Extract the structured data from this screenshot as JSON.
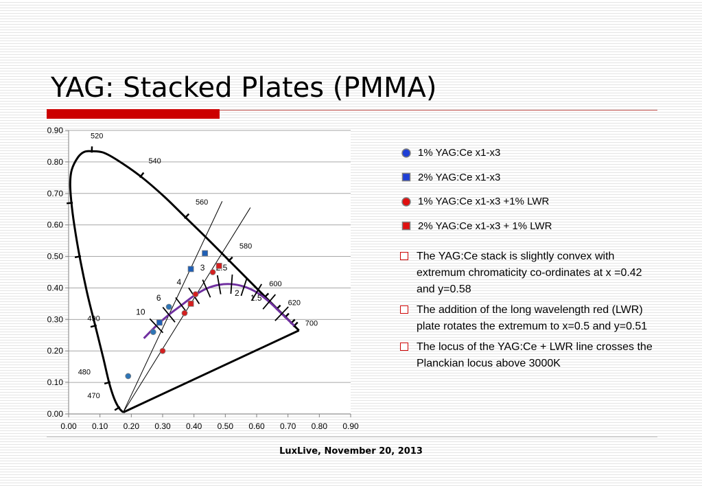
{
  "slide": {
    "title": "YAG: Stacked Plates (PMMA)",
    "footer": "LuxLive, November 20, 2013"
  },
  "colors": {
    "accent_red": "#cc0000",
    "title_rule": "#c0504d",
    "series_1": "#2e75b6",
    "series_2": "#1f5fb5",
    "series_3": "#d42020",
    "series_4": "#d42020",
    "yag_curve": "#7030a0",
    "marker_outline": "#7f7f7f"
  },
  "chart_data": {
    "type": "scatter",
    "xlim": [
      0,
      0.9
    ],
    "ylim": [
      0,
      0.9
    ],
    "x_ticks": [
      "0.00",
      "0.10",
      "0.20",
      "0.30",
      "0.40",
      "0.50",
      "0.60",
      "0.70",
      "0.80",
      "0.90"
    ],
    "y_ticks": [
      "0.00",
      "0.10",
      "0.20",
      "0.30",
      "0.40",
      "0.50",
      "0.60",
      "0.70",
      "0.80",
      "0.90"
    ],
    "grid": "horizontal",
    "legend_position": "right",
    "series": [
      {
        "name": "1% YAG:Ce x1-x3",
        "marker": "circle",
        "color_key": "series_1",
        "points": [
          [
            0.19,
            0.12
          ],
          [
            0.27,
            0.26
          ],
          [
            0.32,
            0.34
          ]
        ]
      },
      {
        "name": "2% YAG:Ce x1-x3",
        "marker": "square",
        "color_key": "series_2",
        "points": [
          [
            0.29,
            0.29
          ],
          [
            0.39,
            0.46
          ],
          [
            0.435,
            0.51
          ]
        ]
      },
      {
        "name": "1% YAG:Ce x1-x3 +1% LWR",
        "marker": "circle",
        "color_key": "series_3",
        "points": [
          [
            0.3,
            0.2
          ],
          [
            0.37,
            0.32
          ],
          [
            0.405,
            0.38
          ],
          [
            0.46,
            0.45
          ]
        ]
      },
      {
        "name": "2% YAG:Ce x1-x3 + 1% LWR",
        "marker": "square",
        "color_key": "series_4",
        "points": [
          [
            0.39,
            0.35
          ],
          [
            0.48,
            0.47
          ]
        ]
      }
    ],
    "spectral_locus": {
      "points": [
        [
          0.174,
          0.005
        ],
        [
          0.16,
          0.02
        ],
        [
          0.145,
          0.05
        ],
        [
          0.129,
          0.1
        ],
        [
          0.11,
          0.18
        ],
        [
          0.085,
          0.28
        ],
        [
          0.06,
          0.38
        ],
        [
          0.035,
          0.5
        ],
        [
          0.018,
          0.6
        ],
        [
          0.009,
          0.67
        ],
        [
          0.005,
          0.73
        ],
        [
          0.01,
          0.775
        ],
        [
          0.03,
          0.815
        ],
        [
          0.05,
          0.832
        ],
        [
          0.074,
          0.834
        ],
        [
          0.11,
          0.83
        ],
        [
          0.155,
          0.806
        ],
        [
          0.23,
          0.754
        ],
        [
          0.305,
          0.69
        ],
        [
          0.373,
          0.624
        ],
        [
          0.444,
          0.555
        ],
        [
          0.512,
          0.487
        ],
        [
          0.575,
          0.424
        ],
        [
          0.627,
          0.372
        ],
        [
          0.665,
          0.334
        ],
        [
          0.692,
          0.308
        ],
        [
          0.711,
          0.289
        ],
        [
          0.72,
          0.28
        ],
        [
          0.735,
          0.265
        ]
      ],
      "purple_line": [
        [
          0.735,
          0.265
        ],
        [
          0.174,
          0.005
        ]
      ],
      "wavelength_labels": [
        {
          "text": "470",
          "x": 0.06,
          "y": 0.05
        },
        {
          "text": "480",
          "x": 0.03,
          "y": 0.125
        },
        {
          "text": "490",
          "x": 0.06,
          "y": 0.295
        },
        {
          "text": "520",
          "x": 0.07,
          "y": 0.875
        },
        {
          "text": "540",
          "x": 0.255,
          "y": 0.795
        },
        {
          "text": "560",
          "x": 0.405,
          "y": 0.665
        },
        {
          "text": "580",
          "x": 0.545,
          "y": 0.525
        },
        {
          "text": "600",
          "x": 0.64,
          "y": 0.405
        },
        {
          "text": "620",
          "x": 0.7,
          "y": 0.345
        },
        {
          "text": "700",
          "x": 0.755,
          "y": 0.28
        }
      ]
    },
    "yag_curve": {
      "points": [
        [
          0.24,
          0.24
        ],
        [
          0.28,
          0.28
        ],
        [
          0.32,
          0.315
        ],
        [
          0.36,
          0.345
        ],
        [
          0.4,
          0.375
        ],
        [
          0.44,
          0.398
        ],
        [
          0.48,
          0.41
        ],
        [
          0.52,
          0.412
        ],
        [
          0.56,
          0.404
        ],
        [
          0.6,
          0.386
        ],
        [
          0.64,
          0.356
        ],
        [
          0.68,
          0.318
        ],
        [
          0.72,
          0.28
        ]
      ],
      "labels": [
        {
          "text": "10",
          "x": 0.215,
          "y": 0.315
        },
        {
          "text": "6",
          "x": 0.28,
          "y": 0.36
        },
        {
          "text": "4",
          "x": 0.345,
          "y": 0.41
        },
        {
          "text": "3",
          "x": 0.42,
          "y": 0.455
        },
        {
          "text": "2.5",
          "x": 0.47,
          "y": 0.455
        },
        {
          "text": "2",
          "x": 0.53,
          "y": 0.375
        },
        {
          "text": "1.5",
          "x": 0.58,
          "y": 0.36
        }
      ]
    },
    "straight_lines": [
      [
        [
          0.174,
          0.005
        ],
        [
          0.49,
          0.675
        ]
      ],
      [
        [
          0.174,
          0.005
        ],
        [
          0.58,
          0.655
        ]
      ]
    ]
  },
  "bullets": [
    "The YAG:Ce stack is slightly convex with extremum chromaticity co-ordinates at x =0.42 and y=0.58",
    "The addition of the long wavelength red (LWR) plate rotates the extremum to x=0.5 and y=0.51",
    "The locus of the YAG:Ce + LWR line crosses the Planckian locus above 3000K"
  ]
}
